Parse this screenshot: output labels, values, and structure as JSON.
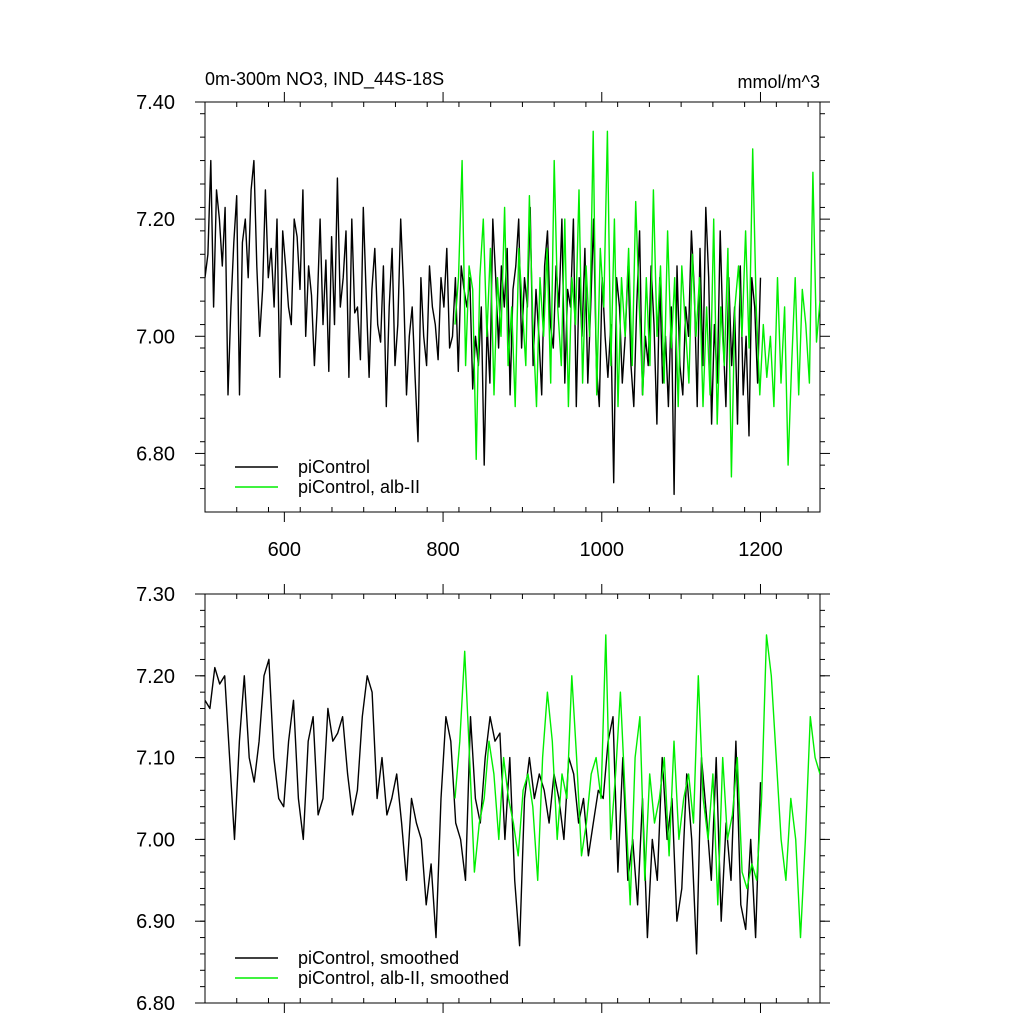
{
  "header": {
    "left_title": "0m-300m NO3, IND_44S-18S",
    "right_title": "mmol/m^3"
  },
  "chart_data": [
    {
      "type": "line",
      "xlim": [
        500,
        1275
      ],
      "ylim": [
        6.7,
        7.4
      ],
      "x_ticks": [
        600,
        800,
        1000,
        1200
      ],
      "x_tick_labels": [
        "600",
        "800",
        "1000",
        "1200"
      ],
      "y_ticks": [
        6.8,
        7.0,
        7.2,
        7.4
      ],
      "y_tick_labels": [
        "6.80",
        "7.00",
        "7.20",
        "7.40"
      ],
      "legend_position": "bottom-left",
      "series": [
        {
          "name": "piControl",
          "color": "#000000",
          "x_start": 500,
          "x_end": 1200,
          "values": [
            7.1,
            7.14,
            7.3,
            7.05,
            7.25,
            7.2,
            7.12,
            7.22,
            6.9,
            7.05,
            7.16,
            7.24,
            6.9,
            7.16,
            7.2,
            7.1,
            7.25,
            7.3,
            7.12,
            7.0,
            7.08,
            7.25,
            7.1,
            7.15,
            7.05,
            7.2,
            6.93,
            7.18,
            7.12,
            7.05,
            7.02,
            7.2,
            7.17,
            7.08,
            7.25,
            7.0,
            7.12,
            7.07,
            6.95,
            7.05,
            7.2,
            7.02,
            7.13,
            6.94,
            7.17,
            7.02,
            7.27,
            7.05,
            7.1,
            7.18,
            6.93,
            7.2,
            7.04,
            7.05,
            6.96,
            7.22,
            7.07,
            6.93,
            7.08,
            7.15,
            7.02,
            6.99,
            7.12,
            6.88,
            7.05,
            7.15,
            6.95,
            7.02,
            7.2,
            7.08,
            6.9,
            7.0,
            7.05,
            6.93,
            6.82,
            7.1,
            7.0,
            6.95,
            7.12,
            7.05,
            7.02,
            6.96,
            7.1,
            7.05,
            7.15,
            6.98,
            7.0,
            7.1,
            6.94,
            7.12,
            7.08,
            7.05,
            7.1,
            6.91,
            7.0,
            6.95,
            7.05,
            6.78,
            7.02,
            6.92,
            7.2,
            7.1,
            6.98,
            7.12,
            7.05,
            7.15,
            6.9,
            7.08,
            7.12,
            7.2,
            6.98,
            7.1,
            7.05,
            7.22,
            6.95,
            7.08,
            7.0,
            6.9,
            7.12,
            7.18,
            7.02,
            6.98,
            7.12,
            7.05,
            7.2,
            6.92,
            7.08,
            7.05,
            7.2,
            6.88,
            7.1,
            7.0,
            7.15,
            6.92,
            7.05,
            7.2,
            6.95,
            6.88,
            7.1,
            7.0,
            6.93,
            7.02,
            6.75,
            7.1,
            7.05,
            6.92,
            7.0,
            7.12,
            6.95,
            6.88,
            7.05,
            7.18,
            6.9,
            7.0,
            6.95,
            7.12,
            7.02,
            6.85,
            7.1,
            6.92,
            7.0,
            6.88,
            7.05,
            6.73,
            7.12,
            6.95,
            6.9,
            7.05,
            7.0,
            7.18,
            7.08,
            6.88,
            7.15,
            6.95,
            7.22,
            7.1,
            6.85,
            7.02,
            6.92,
            7.18,
            7.0,
            6.88,
            7.1,
            6.95,
            7.05,
            6.85,
            7.12,
            6.9,
            7.0,
            6.83,
            7.1,
            7.05,
            6.92,
            7.1
          ]
        },
        {
          "name": "piControl, alb-II",
          "color": "#00ee00",
          "x_start": 815,
          "x_end": 1275,
          "values": [
            7.02,
            7.1,
            7.3,
            6.95,
            7.12,
            7.08,
            6.79,
            7.1,
            7.2,
            7.0,
            7.15,
            6.9,
            7.1,
            7.0,
            7.22,
            6.95,
            7.05,
            6.88,
            7.15,
            7.05,
            6.95,
            7.24,
            7.02,
            6.88,
            7.1,
            7.0,
            7.15,
            6.92,
            7.3,
            7.05,
            6.95,
            7.2,
            6.88,
            7.1,
            7.02,
            7.25,
            6.92,
            7.12,
            7.0,
            7.35,
            6.9,
            7.15,
            7.05,
            7.35,
            6.95,
            7.2,
            6.88,
            7.1,
            7.0,
            7.15,
            6.95,
            7.23,
            7.05,
            6.9,
            7.1,
            6.95,
            7.25,
            7.0,
            7.12,
            6.92,
            7.18,
            6.98,
            7.1,
            6.88,
            7.12,
            7.02,
            6.92,
            7.14,
            7.0,
            7.1,
            6.88,
            7.05,
            6.9,
            7.2,
            6.85,
            7.05,
            6.95,
            7.15,
            6.76,
            7.05,
            7.12,
            7.0,
            7.18,
            6.98,
            7.32,
            7.05,
            6.9,
            7.02,
            6.93,
            7.0,
            6.88,
            7.1,
            6.92,
            7.05,
            6.78,
            6.95,
            7.1,
            6.9,
            7.08,
            7.02,
            6.92,
            7.28,
            6.99,
            7.06
          ]
        }
      ]
    },
    {
      "type": "line",
      "xlim": [
        500,
        1275
      ],
      "ylim": [
        6.8,
        7.3
      ],
      "x_ticks": [
        600,
        800,
        1000,
        1200
      ],
      "y_ticks": [
        6.8,
        6.9,
        7.0,
        7.1,
        7.2,
        7.3
      ],
      "y_tick_labels": [
        "6.80",
        "6.90",
        "7.00",
        "7.10",
        "7.20",
        "7.30"
      ],
      "legend_position": "bottom-left",
      "series": [
        {
          "name": "piControl, smoothed",
          "color": "#000000",
          "x_start": 500,
          "x_end": 1200,
          "values": [
            7.17,
            7.16,
            7.21,
            7.19,
            7.2,
            7.1,
            7.0,
            7.12,
            7.2,
            7.1,
            7.07,
            7.12,
            7.2,
            7.22,
            7.1,
            7.05,
            7.04,
            7.12,
            7.17,
            7.05,
            7.0,
            7.12,
            7.15,
            7.03,
            7.05,
            7.16,
            7.12,
            7.13,
            7.15,
            7.08,
            7.03,
            7.06,
            7.15,
            7.2,
            7.18,
            7.05,
            7.1,
            7.03,
            7.05,
            7.08,
            7.02,
            6.95,
            7.05,
            7.02,
            7.0,
            6.92,
            6.97,
            6.88,
            7.05,
            7.15,
            7.12,
            7.02,
            7.0,
            6.95,
            7.15,
            7.05,
            7.02,
            7.1,
            7.15,
            7.12,
            7.13,
            7.0,
            7.1,
            6.95,
            6.87,
            7.05,
            7.1,
            7.05,
            7.08,
            7.06,
            7.02,
            7.08,
            7.05,
            7.0,
            7.1,
            7.08,
            7.02,
            7.05,
            6.98,
            7.02,
            7.06,
            7.05,
            7.12,
            7.15,
            6.96,
            7.1,
            6.95,
            7.0,
            6.92,
            7.05,
            6.88,
            7.0,
            6.95,
            7.1,
            7.0,
            7.05,
            6.9,
            6.94,
            7.08,
            7.0,
            6.86,
            7.1,
            7.03,
            6.95,
            7.1,
            6.9,
            7.02,
            6.95,
            7.12,
            6.92,
            6.89,
            7.0,
            6.88,
            7.07
          ]
        },
        {
          "name": "piControl, alb-II, smoothed",
          "color": "#00ee00",
          "x_start": 815,
          "x_end": 1275,
          "values": [
            7.05,
            7.12,
            7.23,
            7.1,
            6.96,
            7.02,
            7.05,
            7.12,
            7.08,
            7.0,
            7.1,
            7.05,
            7.02,
            6.98,
            7.06,
            7.08,
            7.04,
            6.95,
            7.1,
            7.18,
            7.12,
            7.0,
            7.08,
            7.05,
            7.2,
            7.1,
            6.98,
            7.02,
            7.08,
            7.1,
            7.05,
            7.25,
            7.0,
            7.08,
            7.18,
            7.05,
            6.92,
            7.1,
            7.15,
            6.95,
            7.08,
            7.02,
            7.05,
            7.1,
            6.98,
            7.12,
            7.0,
            7.05,
            7.08,
            7.02,
            7.2,
            7.05,
            7.0,
            7.08,
            6.92,
            7.1,
            7.0,
            7.03,
            7.1,
            6.96,
            6.94,
            6.97,
            6.95,
            7.05,
            7.25,
            7.2,
            7.1,
            7.0,
            6.95,
            7.05,
            7.0,
            6.88,
            7.0,
            7.15,
            7.1,
            7.08
          ]
        }
      ]
    }
  ]
}
